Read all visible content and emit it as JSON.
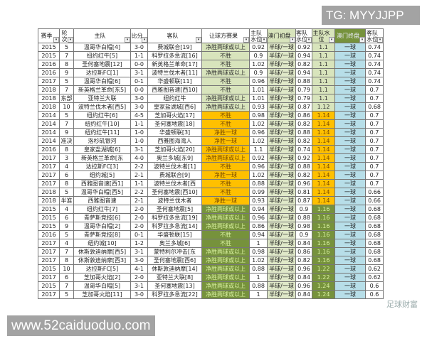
{
  "overlays": {
    "tg": "TG: MYYJJPP",
    "site": "www.52caiduoduo.com",
    "watermark": "足球财富"
  },
  "colors": {
    "group_green": "#d8e4bc",
    "group_orange": "#ffc000",
    "group_olive": "#76923c",
    "initial_line": "#dfe8c8",
    "final_line": "#b7dee8"
  },
  "table": {
    "headers": [
      "赛季",
      "轮次",
      "主队",
      "比分",
      "客队",
      "让球方赛果",
      "主队水位",
      "澳门初盘",
      "客队水位",
      "主队水位",
      "澳门终盘",
      "客队水位"
    ],
    "rows": [
      {
        "g": 1,
        "c": [
          "2015",
          "5",
          "温哥华白帽[4]",
          "3-0",
          "费城联合[19]",
          "净胜两球或以上",
          "0.92",
          "半球/一球",
          "0.92",
          "1.1",
          "一球",
          "0.74"
        ]
      },
      {
        "g": 1,
        "c": [
          "2015",
          "7",
          "纽约红牛[5]",
          "1-1",
          "科罗拉多急流[16]",
          "不胜",
          "0.9",
          "半球/一球",
          "0.94",
          "1.1",
          "一球",
          "0.74"
        ]
      },
      {
        "g": 1,
        "c": [
          "2016",
          "8",
          "圣何塞地震[12]",
          "0-0",
          "新英格兰革命[17]",
          "不胜",
          "1.02",
          "半球/一球",
          "0.82",
          "1.1",
          "一球",
          "0.74"
        ]
      },
      {
        "g": 1,
        "c": [
          "2016",
          "9",
          "达拉斯FC[1]",
          "3-1",
          "波特兰伐木者[11]",
          "净胜两球或以上",
          "0.9",
          "半球/一球",
          "0.94",
          "1.1",
          "一球",
          "0.74"
        ]
      },
      {
        "g": 1,
        "c": [
          "2017",
          "5",
          "温哥华白帽[6]",
          "0-1",
          "华盛顿联[11]",
          "不胜",
          "0.96",
          "半球/一球",
          "0.88",
          "1.1",
          "一球",
          "0.74"
        ]
      },
      {
        "g": 1,
        "c": [
          "2018",
          "7",
          "新英格兰革命[东5]",
          "0-0",
          "西雅图音速[西10]",
          "不胜",
          "1.01",
          "半球/一球",
          "0.79",
          "1.1",
          "一球",
          "0.7"
        ]
      },
      {
        "g": 1,
        "c": [
          "2018",
          "东部",
          "亚特兰大联",
          "3-0",
          "纽约红牛",
          "净胜两球或以上",
          "1.01",
          "半球/一球",
          "0.79",
          "1.1",
          "一球",
          "0.7"
        ]
      },
      {
        "g": 1,
        "c": [
          "2018",
          "10",
          "波特兰伐木者[西5]",
          "3-0",
          "皇家盐湖城[西6]",
          "净胜两球或以上",
          "0.93",
          "半球/一球",
          "0.87",
          "1.12",
          "一球",
          "0.68"
        ]
      },
      {
        "g": 2,
        "c": [
          "2014",
          "5",
          "纽约红牛[6]",
          "4-5",
          "芝加哥火焰[17]",
          "不胜",
          "0.98",
          "半球/一球",
          "0.86",
          "1.14",
          "一球",
          "0.7"
        ]
      },
      {
        "g": 2,
        "c": [
          "2014",
          "7",
          "纽约红牛[10]",
          "1-1",
          "圣何塞地震[18]",
          "不胜",
          "1.02",
          "半球/一球",
          "0.82",
          "1.14",
          "一球",
          "0.7"
        ]
      },
      {
        "g": 2,
        "c": [
          "2014",
          "9",
          "纽约红牛[11]",
          "1-0",
          "华盛顿联[3]",
          "净胜一球",
          "0.96",
          "半球/一球",
          "0.88",
          "1.14",
          "一球",
          "0.7"
        ]
      },
      {
        "g": 2,
        "c": [
          "2014",
          "准决",
          "洛杉矶银河",
          "1-0",
          "西雅图海湾人",
          "净胜一球",
          "1.02",
          "半球/一球",
          "0.82",
          "1.14",
          "一球",
          "0.7"
        ]
      },
      {
        "g": 2,
        "c": [
          "2016",
          "8",
          "皇家盐湖城[6]",
          "3-1",
          "芝加哥火焰[20]",
          "净胜两球或以上",
          "1.1",
          "半球/一球",
          "0.74",
          "1.14",
          "一球",
          "0.7"
        ]
      },
      {
        "g": 2,
        "c": [
          "2017",
          "3",
          "新英格兰革命[东",
          "4-0",
          "奥兰多城[东9]",
          "净胜两球或以上",
          "0.92",
          "半球/一球",
          "0.92",
          "1.14",
          "一球",
          "0.7"
        ]
      },
      {
        "g": 2,
        "c": [
          "2017",
          "4",
          "达拉斯FC[3]",
          "2-2",
          "波特兰伐木者[1]",
          "不胜",
          "0.96",
          "半球/一球",
          "0.88",
          "1.14",
          "一球",
          "0.7"
        ]
      },
      {
        "g": 2,
        "c": [
          "2017",
          "6",
          "纽约城[5]",
          "2-1",
          "费城联合[9]",
          "净胜一球",
          "1.02",
          "半球/一球",
          "0.82",
          "1.14",
          "一球",
          "0.7"
        ]
      },
      {
        "g": 2,
        "c": [
          "2017",
          "8",
          "西雅图音速[西1]",
          "1-1",
          "波特兰伐木者[西",
          "不胜",
          "0.88",
          "半球/一球",
          "0.96",
          "1.14",
          "一球",
          "0.7"
        ]
      },
      {
        "g": 2,
        "c": [
          "2018",
          "5",
          "温哥华白帽[西5]",
          "2-2",
          "圣何塞地震[西10]",
          "不胜",
          "0.99",
          "半球/一球",
          "0.81",
          "1.14",
          "一球",
          "0.66"
        ]
      },
      {
        "g": 2,
        "c": [
          "2018",
          "半准",
          "西雅图音速",
          "2-1",
          "波特兰伐木者",
          "净胜一球",
          "0.93",
          "半球/一球",
          "0.87",
          "1.14",
          "一球",
          "0.66"
        ]
      },
      {
        "g": 3,
        "c": [
          "2015",
          "4",
          "纽约红牛[7]",
          "2-0",
          "圣何塞地震[5]",
          "净胜两球或以上",
          "0.94",
          "半球/一球",
          "0.9",
          "1.16",
          "一球",
          "0.68"
        ]
      },
      {
        "g": 3,
        "c": [
          "2015",
          "6",
          "青萨斯竞技[6]",
          "2-0",
          "科罗拉多急流[19]",
          "净胜两球或以上",
          "0.96",
          "半球/一球",
          "0.88",
          "1.16",
          "一球",
          "0.68"
        ]
      },
      {
        "g": 3,
        "c": [
          "2015",
          "9",
          "温哥华白帽[2]",
          "2-0",
          "科罗拉多急流[14]",
          "净胜两球或以上",
          "0.86",
          "半球/一球",
          "0.98",
          "1.16",
          "一球",
          "0.68"
        ]
      },
      {
        "g": 3,
        "c": [
          "2016",
          "5",
          "青萨斯竞技[8]",
          "0-1",
          "华盛顿联[15]",
          "不胜",
          "0.94",
          "半球/一球",
          "0.9",
          "1.16",
          "一球",
          "0.68"
        ]
      },
      {
        "g": 3,
        "c": [
          "2017",
          "4",
          "纽约城[10]",
          "1-2",
          "奥兰多城[6]",
          "不胜",
          "1",
          "半球/一球",
          "0.84",
          "1.16",
          "一球",
          "0.68"
        ]
      },
      {
        "g": 3,
        "c": [
          "2017",
          "7",
          "休斯敦迪纳摩[西5]",
          "3-1",
          "蒙特利尔冲击[东",
          "净胜两球或以上",
          "0.98",
          "半球/一球",
          "0.86",
          "1.16",
          "一球",
          "0.68"
        ]
      },
      {
        "g": 3,
        "c": [
          "2017",
          "8",
          "休斯敦迪纳摩[西3]",
          "3-0",
          "圣何塞地震[西6]",
          "净胜两球或以上",
          "1.02",
          "半球/一球",
          "0.82",
          "1.16",
          "一球",
          "0.68"
        ]
      },
      {
        "g": 3,
        "c": [
          "2015",
          "10",
          "达拉斯FC[5]",
          "4-1",
          "休斯敦迪纳摩[14]",
          "净胜两球或以上",
          "0.88",
          "半球/一球",
          "0.96",
          "1.22",
          "一球",
          "0.62"
        ]
      },
      {
        "g": 3,
        "c": [
          "2017",
          "6",
          "芝加哥火焰[2]",
          "2-0",
          "亚特兰大联[8]",
          "净胜两球或以上",
          "1",
          "半球/一球",
          "0.84",
          "1.22",
          "一球",
          "0.62"
        ]
      },
      {
        "g": 3,
        "c": [
          "2015",
          "7",
          "温哥华白帽[5]",
          "3-1",
          "圣何塞地震[13]",
          "净胜两球或以上",
          "0.88",
          "半球/一球",
          "0.96",
          "1.24",
          "一球",
          "0.6"
        ]
      },
      {
        "g": 3,
        "c": [
          "2017",
          "5",
          "芝加哥火焰[11]",
          "3-0",
          "科罗拉多急流[22]",
          "净胜两球或以上",
          "1",
          "半球/一球",
          "0.84",
          "1.24",
          "一球",
          "0.6"
        ]
      }
    ]
  }
}
